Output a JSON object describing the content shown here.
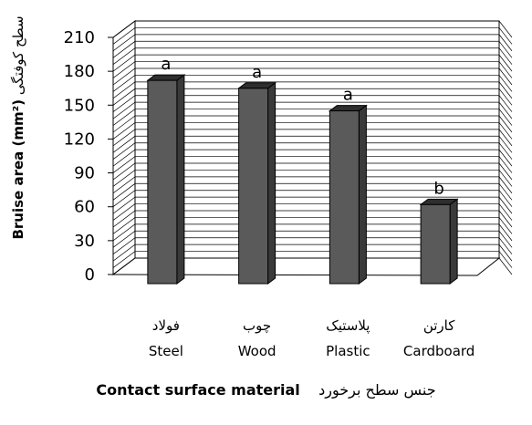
{
  "chart_data": {
    "type": "bar",
    "categories": [
      "Steel",
      "Wood",
      "Plastic",
      "Cardboard"
    ],
    "categories_fa": [
      "فولاد",
      "چوب",
      "پلاستیک",
      "کارتن"
    ],
    "values": [
      180,
      173,
      153,
      70
    ],
    "annotations": [
      "a",
      "a",
      "a",
      "b"
    ],
    "ylabel": "Bruise area (mm²)",
    "ylabel_fa": "سطح کوفتگی",
    "xlabel": "Contact surface material",
    "xlabel_fa": "جنس سطح برخورد",
    "ylim": [
      0,
      210
    ],
    "yticks": [
      0,
      30,
      60,
      90,
      120,
      150,
      180,
      210
    ],
    "grid": true,
    "bar_color": "#5a5a5a"
  }
}
